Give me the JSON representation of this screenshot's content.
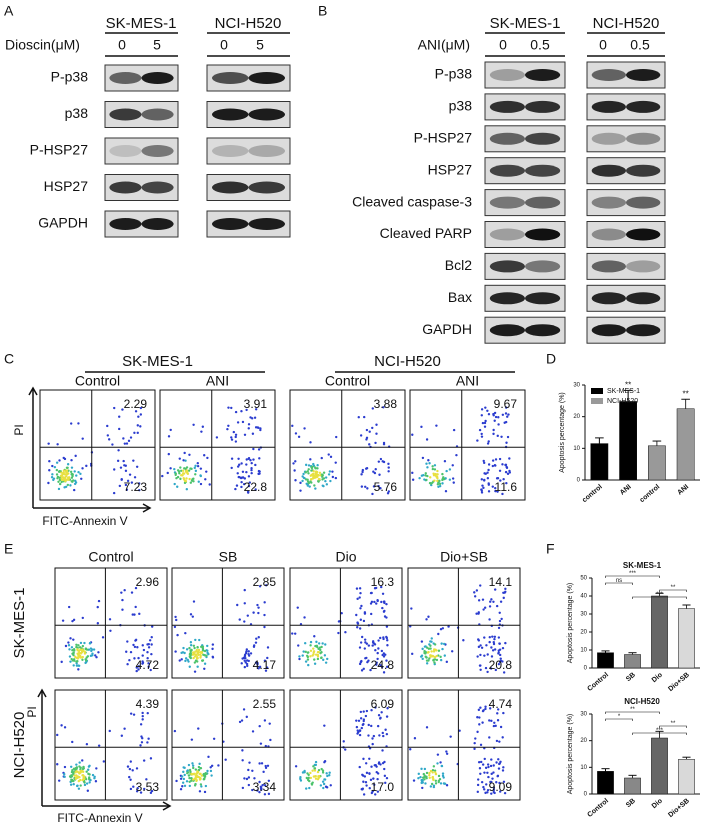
{
  "panel_labels": {
    "a": "A",
    "b": "B",
    "c": "C",
    "d": "D",
    "e": "E",
    "f": "F"
  },
  "panel_a": {
    "cell_lines": [
      "SK-MES-1",
      "NCI-H520"
    ],
    "dose_label": "Dioscin(μM)",
    "doses": [
      0,
      5
    ],
    "proteins": [
      "P-p38",
      "p38",
      "P-HSP27",
      "HSP27",
      "GAPDH"
    ]
  },
  "panel_b": {
    "cell_lines": [
      "SK-MES-1",
      "NCI-H520"
    ],
    "dose_label": "ANI(μM)",
    "doses": [
      0,
      0.5
    ],
    "proteins": [
      "P-p38",
      "p38",
      "P-HSP27",
      "HSP27",
      "Cleaved caspase-3",
      "Cleaved PARP",
      "Bcl2",
      "Bax",
      "GAPDH"
    ]
  },
  "panel_c": {
    "y_label": "PI",
    "x_label": "FITC-Annexin V",
    "groups": [
      {
        "cell_line": "SK-MES-1",
        "conditions": [
          {
            "name": "Control",
            "upper_right": 2.29,
            "lower_right": 7.23
          },
          {
            "name": "ANI",
            "upper_right": 3.91,
            "lower_right": 22.8
          }
        ]
      },
      {
        "cell_line": "NCI-H520",
        "conditions": [
          {
            "name": "Control",
            "upper_right": 3.88,
            "lower_right": 5.76
          },
          {
            "name": "ANI",
            "upper_right": 9.67,
            "lower_right": 11.6
          }
        ]
      }
    ]
  },
  "panel_e": {
    "y_label": "PI",
    "x_label": "FITC-Annexin V",
    "conditions": [
      "Control",
      "SB",
      "Dio",
      "Dio+SB"
    ],
    "rows": [
      {
        "cell_line": "SK-MES-1",
        "upper_right": [
          2.96,
          2.85,
          16.3,
          14.1
        ],
        "lower_right": [
          4.72,
          4.17,
          24.8,
          20.8
        ]
      },
      {
        "cell_line": "NCI-H520",
        "upper_right": [
          4.39,
          2.55,
          6.09,
          4.74
        ],
        "lower_right": [
          3.53,
          3.34,
          {
            "value": 17,
            "label": "17.0"
          },
          9.09
        ]
      }
    ]
  },
  "chart_data": [
    {
      "type": "bar",
      "y_label": "Apoptosis percentage (%)",
      "categories": [
        "control",
        "ANI",
        "control",
        "ANI"
      ],
      "series": [
        {
          "name": "SK-MES-1",
          "color": "#000000",
          "values": [
            11.5,
            24.8,
            null,
            null
          ],
          "errors": [
            1.8,
            3.5,
            null,
            null
          ],
          "significance": [
            null,
            "**",
            null,
            null
          ]
        },
        {
          "name": "NCI-H520",
          "color": "#999999",
          "values": [
            null,
            null,
            10.8,
            22.5
          ],
          "errors": [
            null,
            null,
            1.5,
            3.0
          ],
          "significance": [
            null,
            null,
            null,
            "**"
          ]
        }
      ],
      "ylim": [
        0,
        30
      ],
      "yticks": [
        0,
        10,
        20,
        30
      ],
      "legend": "top-left"
    },
    {
      "type": "bar",
      "title": "SK-MES-1",
      "y_label": "Apoptosis percentage (%)",
      "categories": [
        "Control",
        "SB",
        "Dio",
        "Dio+SB"
      ],
      "series": [
        {
          "colors": [
            "#000000",
            "#888888",
            "#666666",
            "#d9d9d9"
          ],
          "values": [
            8.5,
            7.5,
            40,
            33
          ],
          "errors": [
            1,
            1,
            1.5,
            2
          ]
        }
      ],
      "comparisons": [
        {
          "from": "Control",
          "to": "Dio",
          "text": "***"
        },
        {
          "from": "Control",
          "to": "SB",
          "text": "ns"
        },
        {
          "from": "Dio",
          "to": "Dio+SB",
          "text": "**"
        },
        {
          "from": "SB",
          "to": "Dio+SB",
          "text": "***"
        }
      ],
      "ylim": [
        0,
        50
      ],
      "yticks": [
        0,
        10,
        20,
        30,
        40,
        50
      ]
    },
    {
      "type": "bar",
      "title": "NCI-H520",
      "y_label": "Apoptosis percentage (%)",
      "categories": [
        "Control",
        "SB",
        "Dio",
        "Dio+SB"
      ],
      "series": [
        {
          "colors": [
            "#000000",
            "#888888",
            "#666666",
            "#d9d9d9"
          ],
          "values": [
            8.5,
            6,
            21,
            13
          ],
          "errors": [
            1,
            1,
            2.5,
            0.8
          ]
        }
      ],
      "comparisons": [
        {
          "from": "Control",
          "to": "Dio",
          "text": "**"
        },
        {
          "from": "Control",
          "to": "SB",
          "text": "*"
        },
        {
          "from": "Dio",
          "to": "Dio+SB",
          "text": "**"
        },
        {
          "from": "SB",
          "to": "Dio+SB",
          "text": "***"
        }
      ],
      "ylim": [
        0,
        30
      ],
      "yticks": [
        0,
        10,
        20,
        30
      ]
    }
  ]
}
